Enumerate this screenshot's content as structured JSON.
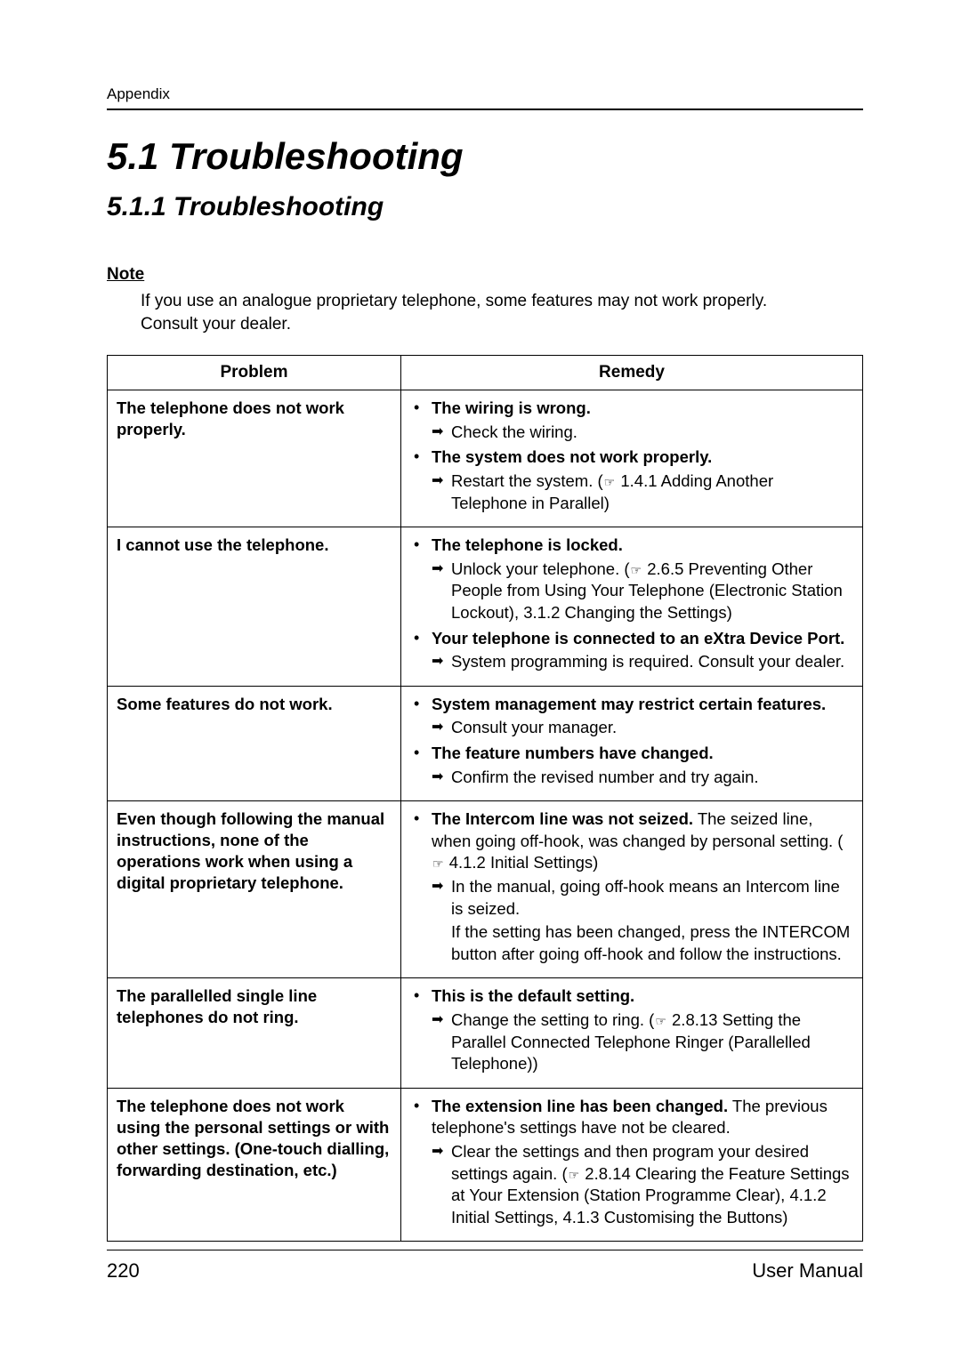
{
  "header": {
    "running": "Appendix"
  },
  "titles": {
    "h1": "5.1   Troubleshooting",
    "h2": "5.1.1   Troubleshooting"
  },
  "note": {
    "label": "Note",
    "body_line1": "If you use an analogue proprietary telephone, some features may not work properly.",
    "body_line2": "Consult your dealer."
  },
  "table": {
    "header_problem": "Problem",
    "header_remedy": "Remedy",
    "rows": {
      "r0": {
        "problem": "The telephone does not work properly.",
        "b0_lead": "The wiring is wrong.",
        "b0_act": "Check the wiring.",
        "b1_lead": "The system does not work properly.",
        "b1_act": "Restart the system. (     1.4.1   Adding Another Telephone in Parallel)"
      },
      "r1": {
        "problem": "I cannot use the telephone.",
        "b0_lead": "The telephone is locked.",
        "b0_act": "Unlock your telephone. (     2.6.5   Preventing Other People from Using Your Telephone (Electronic Station Lockout), 3.1.2   Changing the Settings)",
        "b1_lead": "Your telephone is connected to an eXtra Device Port.",
        "b1_act": "System programming is required. Consult your dealer."
      },
      "r2": {
        "problem": "Some features do not work.",
        "b0_lead": "System management may restrict certain features.",
        "b0_act": "Consult your manager.",
        "b1_lead": "The feature numbers have changed.",
        "b1_act": "Confirm the revised number and try again."
      },
      "r3": {
        "problem": "Even though following the manual instructions, none of the operations work when using a digital proprietary telephone.",
        "b0_lead": "The Intercom line was not seized.",
        "b0_tail": " The seized line, when going off-hook, was changed by personal setting. (     4.1.2   Initial Settings)",
        "b0_act": "In the manual, going off-hook means an Intercom line is seized.",
        "b0_follow": "If the setting has been changed, press the INTERCOM button after going off-hook and follow the instructions."
      },
      "r4": {
        "problem": "The parallelled single line telephones do not ring.",
        "b0_lead": "This is the default setting.",
        "b0_act": "Change the setting to ring. (     2.8.13   Setting the Parallel Connected Telephone Ringer (Parallelled Telephone))"
      },
      "r5": {
        "problem": "The telephone does not work using the personal settings or with other settings. (One-touch dialling, forwarding destination, etc.)",
        "b0_lead": "The extension line has been changed.",
        "b0_tail": " The previous telephone's settings have not be cleared.",
        "b0_act": "Clear the settings and then program your desired settings again. (     2.8.14   Clearing the Feature Settings at Your Extension (Station Programme Clear), 4.1.2   Initial Settings, 4.1.3   Customising the Buttons)"
      }
    }
  },
  "footer": {
    "page": "220",
    "manual": "User Manual"
  },
  "glyphs": {
    "ref": "☞"
  }
}
